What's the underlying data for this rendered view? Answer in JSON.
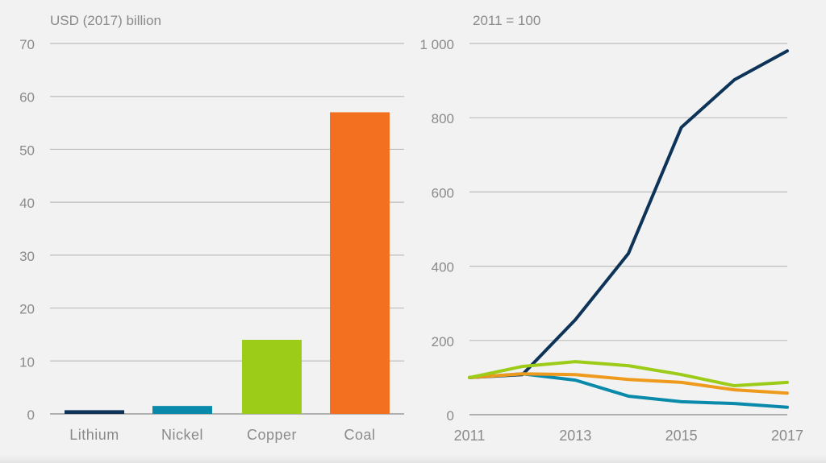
{
  "chart_data": [
    {
      "type": "bar",
      "ylabel": "USD (2017) billion",
      "ylim": [
        0,
        70
      ],
      "yticks": [
        0,
        10,
        20,
        30,
        40,
        50,
        60,
        70
      ],
      "categories": [
        "Lithium",
        "Nickel",
        "Copper",
        "Coal"
      ],
      "values": [
        0.7,
        1.5,
        14,
        57
      ],
      "colors": [
        "#0d3358",
        "#0a8aaa",
        "#9ccc17",
        "#f37021"
      ],
      "grid": true
    },
    {
      "type": "line",
      "ylabel": "2011 = 100",
      "ylim": [
        0,
        1000
      ],
      "yticks": [
        0,
        200,
        400,
        600,
        800,
        1000
      ],
      "ytick_labels": [
        "0",
        "200",
        "400",
        "600",
        "800",
        "1 000"
      ],
      "x": [
        2011,
        2012,
        2013,
        2014,
        2015,
        2016,
        2017
      ],
      "xticks": [
        "2011",
        "2013",
        "2015",
        "2017"
      ],
      "grid": true,
      "series": [
        {
          "color": "#0d3358",
          "values": [
            100,
            108,
            256,
            434,
            774,
            902,
            980
          ]
        },
        {
          "color": "#0a8aaa",
          "values": [
            100,
            110,
            93,
            50,
            35,
            30,
            20
          ]
        },
        {
          "color": "#ee9a1c",
          "values": [
            100,
            110,
            108,
            95,
            87,
            67,
            58
          ]
        },
        {
          "color": "#9ccc17",
          "values": [
            100,
            130,
            143,
            132,
            108,
            78,
            87
          ]
        }
      ]
    }
  ]
}
